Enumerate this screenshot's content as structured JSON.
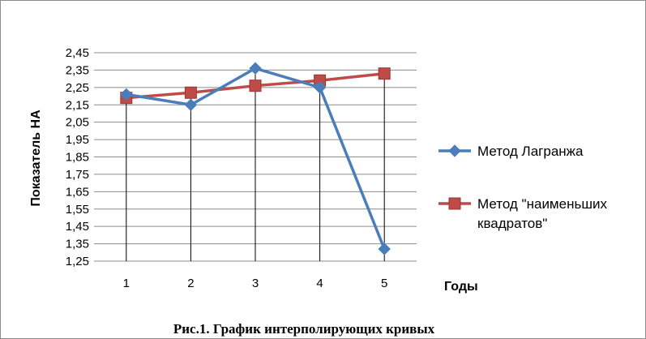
{
  "caption": "Рис.1. График интерполирующих кривых",
  "chart_data": {
    "type": "line",
    "title": "",
    "xlabel": "Годы",
    "ylabel": "Показатель НА",
    "categories": [
      "1",
      "2",
      "3",
      "4",
      "5"
    ],
    "ylim": [
      1.25,
      2.45
    ],
    "y_ticks": [
      "1,25",
      "1,35",
      "1,45",
      "1,55",
      "1,65",
      "1,75",
      "1,85",
      "1,95",
      "2,05",
      "2,15",
      "2,25",
      "2,35",
      "2,45"
    ],
    "grid": "horizontal",
    "legend_position": "right",
    "series": [
      {
        "name_lines": [
          "Метод Лагранжа"
        ],
        "values": [
          2.21,
          2.15,
          2.36,
          2.25,
          1.32
        ],
        "color": "#4a7ebb",
        "marker": "diamond"
      },
      {
        "name_lines": [
          "Метод \"наименьших",
          "квадратов\""
        ],
        "values": [
          2.19,
          2.22,
          2.26,
          2.29,
          2.33
        ],
        "color": "#be4b48",
        "marker": "square"
      }
    ]
  }
}
